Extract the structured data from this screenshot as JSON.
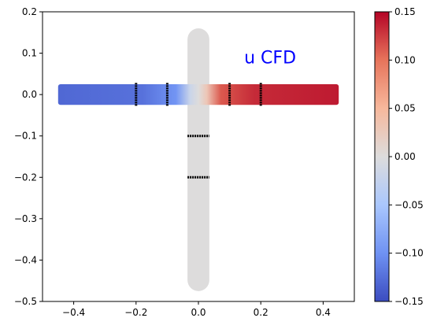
{
  "chart_data": {
    "type": "scatter",
    "annotation": "u CFD",
    "colors": {
      "annotation": "#0000ff",
      "colormap": [
        "#3b4cc0",
        "#6f92f3",
        "#aac7fd",
        "#dddcdc",
        "#f7b89c",
        "#e7745b",
        "#b40426"
      ],
      "neutral": "#d9d9d9",
      "markers": "#000000",
      "frame": "#000000"
    },
    "xlim": [
      -0.5,
      0.5
    ],
    "ylim": [
      -0.5,
      0.2
    ],
    "xticks": [
      -0.4,
      -0.2,
      0.0,
      0.2,
      0.4
    ],
    "xtick_labels": [
      "−0.4",
      "−0.2",
      "0.0",
      "0.2",
      "0.4"
    ],
    "yticks": [
      0.2,
      0.1,
      0.0,
      -0.1,
      -0.2,
      -0.3,
      -0.4,
      -0.5
    ],
    "ytick_labels": [
      "0.2",
      "0.1",
      "0.0",
      "−0.1",
      "−0.2",
      "−0.3",
      "−0.4",
      "−0.5"
    ],
    "grid": false,
    "colorbar": {
      "range": [
        -0.15,
        0.15
      ],
      "ticks": [
        0.15,
        0.1,
        0.05,
        0.0,
        -0.05,
        -0.1,
        -0.15
      ],
      "tick_labels": [
        "0.15",
        "0.10",
        "0.05",
        "0.00",
        "−0.05",
        "−0.10",
        "−0.15"
      ]
    },
    "domain": {
      "horizontal_channel": {
        "x": [
          -0.45,
          0.45
        ],
        "y": [
          -0.025,
          0.025
        ],
        "u_at_left_end": -0.13,
        "u_at_right_end": 0.14
      },
      "vertical_channel": {
        "x": [
          -0.035,
          0.035
        ],
        "y": [
          -0.475,
          0.16
        ],
        "u": 0.0
      }
    },
    "probe_lines": [
      {
        "orientation": "vertical",
        "x": -0.2,
        "y": [
          -0.028,
          0.028
        ]
      },
      {
        "orientation": "vertical",
        "x": -0.1,
        "y": [
          -0.028,
          0.028
        ]
      },
      {
        "orientation": "vertical",
        "x": 0.1,
        "y": [
          -0.028,
          0.028
        ]
      },
      {
        "orientation": "vertical",
        "x": 0.2,
        "y": [
          -0.028,
          0.028
        ]
      },
      {
        "orientation": "horizontal",
        "y": -0.1,
        "x": [
          -0.035,
          0.035
        ]
      },
      {
        "orientation": "horizontal",
        "y": -0.2,
        "x": [
          -0.035,
          0.035
        ]
      }
    ]
  }
}
